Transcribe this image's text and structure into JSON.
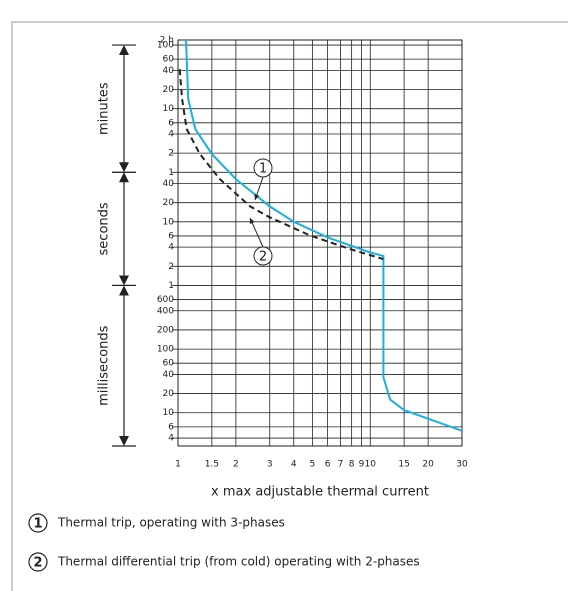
{
  "chart_data": {
    "type": "line",
    "xlabel": "x max adjustable thermal current",
    "xscale": "log",
    "yscale": "log",
    "grid": true,
    "xlim": [
      1,
      30
    ],
    "xticks": [
      1,
      1.5,
      2,
      3,
      4,
      5,
      6,
      7,
      8,
      9,
      10,
      15,
      20,
      30
    ],
    "ylim": [
      0.003,
      7200
    ],
    "yticks": [
      {
        "value": 7200,
        "label": "2 h"
      },
      {
        "value": 6000,
        "label": "100"
      },
      {
        "value": 3600,
        "label": "60"
      },
      {
        "value": 2400,
        "label": "40"
      },
      {
        "value": 1200,
        "label": "20"
      },
      {
        "value": 600,
        "label": "10"
      },
      {
        "value": 360,
        "label": "6"
      },
      {
        "value": 240,
        "label": "4"
      },
      {
        "value": 120,
        "label": "2"
      },
      {
        "value": 60,
        "label": "1"
      },
      40,
      20,
      10,
      6,
      4,
      2,
      1,
      {
        "value": 0.6,
        "label": "600"
      },
      {
        "value": 0.4,
        "label": "400"
      },
      {
        "value": 0.2,
        "label": "200"
      },
      {
        "value": 0.1,
        "label": "100"
      },
      {
        "value": 0.06,
        "label": "60"
      },
      {
        "value": 0.04,
        "label": "40"
      },
      {
        "value": 0.02,
        "label": "20"
      },
      {
        "value": 0.01,
        "label": "10"
      },
      {
        "value": 0.006,
        "label": "6"
      },
      {
        "value": 0.004,
        "label": "4"
      }
    ],
    "time_ranges": [
      {
        "label": "minutes",
        "from": 60,
        "to": 6000
      },
      {
        "label": "seconds",
        "from": 1,
        "to": 60
      },
      {
        "label": "milliseconds",
        "from": 0.003,
        "to": 1
      }
    ],
    "series": [
      {
        "name": "Thermal trip, operating with 3-phases",
        "marker": "1",
        "color": "#1ab0e0",
        "dash": false,
        "x": [
          1.1,
          1.13,
          1.23,
          1.5,
          2,
          3,
          4,
          6,
          10,
          11.7,
          11.7,
          12.7,
          15,
          30
        ],
        "values": [
          7200,
          850,
          286,
          116,
          47,
          17.5,
          10,
          5.7,
          3.3,
          2.9,
          0.036,
          0.016,
          0.011,
          0.0052
        ]
      },
      {
        "name": "Thermal differential trip (from cold) operating with 2-phases",
        "marker": "2",
        "color": "#222222",
        "dash": true,
        "x": [
          1.02,
          1.05,
          1.11,
          1.3,
          1.65,
          2.37,
          3,
          4.87,
          7.9,
          11.7
        ],
        "values": [
          2500,
          850,
          286,
          116,
          47,
          17.5,
          11.8,
          6.1,
          3.7,
          2.6
        ]
      }
    ]
  }
}
